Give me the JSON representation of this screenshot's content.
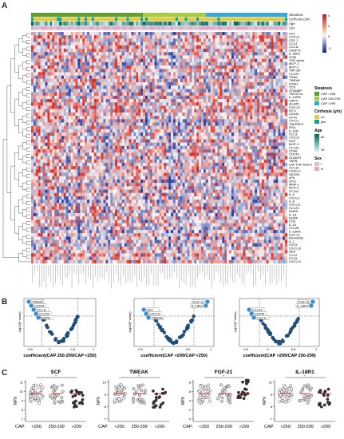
{
  "panels": {
    "a": "A",
    "b": "B",
    "c": "C"
  },
  "heatmap": {
    "annot_labels": [
      "Steatosis",
      "Cirrhosis (y/n)",
      "Age",
      "Sex"
    ],
    "genes": [
      "SCF",
      "CXCL6",
      "CSF-1",
      "CCL4",
      "CCL11",
      "CASP-8",
      "IL-18R1",
      "OSM",
      "TGF-alpha",
      "MCP-1",
      "MCP-2",
      "TNF-sfb",
      "CCL20",
      "TRAIL",
      "TWEAK",
      "AXIN1",
      "CD5",
      "STAMBP",
      "TNFSF14",
      "IL-10RB",
      "SIRT2",
      "4E-BP1",
      "FGF-23",
      "NT-3",
      "CD244",
      "LIF-R",
      "CXCL1",
      "TNFRSF9",
      "Flt3L",
      "IL-12B",
      "CCL3",
      "CXCL5",
      "HGF",
      "MCP-3",
      "CCL25",
      "CD40",
      "CDCP1",
      "SLAMF1",
      "TNFB",
      "LAP TGF-beta-1",
      "CCL19",
      "CX3CL1",
      "VEGFA",
      "uPA",
      "OPG",
      "MMP-1",
      "MCP-4",
      "ST1A1",
      "IL-6",
      "CXCL9",
      "IL-8",
      "CXCL11",
      "CCL23",
      "DNER",
      "IL-18",
      "GDNF",
      "CD6",
      "IL-10",
      "CCL28",
      "IL-15RA",
      "FGF-21",
      "EN-RAGE",
      "IL-7",
      "CST5",
      "CXCL10",
      "ADA",
      "CCL2",
      "CCL5",
      "CXCL12"
    ],
    "colorbar_ticks": [
      "4",
      "2",
      "0",
      "-2"
    ],
    "legend": {
      "steatosis": {
        "title": "Steatosis",
        "items": [
          {
            "label": "CAP <250",
            "color": "#5aa02c"
          },
          {
            "label": "CAP 250-299",
            "color": "#a4cd3a"
          },
          {
            "label": "CAP >299",
            "color": "#2fa9d8"
          }
        ]
      },
      "cirrhosis": {
        "title": "Cirrhosis (y/n)",
        "items": [
          {
            "label": "no",
            "color": "#e3c94a"
          },
          {
            "label": "yes",
            "color": "#17a098"
          }
        ]
      },
      "age": {
        "title": "Age",
        "ticks": [
          "80",
          "30"
        ]
      },
      "sex": {
        "title": "Sex",
        "items": [
          {
            "label": "f",
            "color": "#d7c0d6"
          },
          {
            "label": "m",
            "color": "#e3a7c6"
          }
        ]
      }
    },
    "colors": {
      "high": "#d73027",
      "low": "#2c3ea0",
      "mid": "#f7f7f7"
    }
  },
  "volcanoes": [
    {
      "xlabel": "coefficient(CAP 250-299/CAP <250)",
      "ylabel": "-log10(P value)",
      "labels": [
        "TWEAK",
        "CD244",
        "CCL11",
        "CCL28",
        "AXIN1"
      ],
      "xticks": [
        "-0.5",
        "0",
        "0.5",
        "1"
      ]
    },
    {
      "xlabel": "coefficient(CAP >299/CAP <250)",
      "ylabel": "-log10(P value)",
      "labels": [
        "FGF-21",
        "IL-18R1",
        "SCF",
        "CXCL5",
        "TWEAK"
      ],
      "xticks": [
        "-0.5",
        "0",
        "0.5",
        "1"
      ]
    },
    {
      "xlabel": "coefficient(CAP >299/CAP 250-299)",
      "ylabel": "-log10(P value)",
      "labels": [
        "FGF-21",
        "IL-18R1",
        "CCL23",
        "CD244",
        "CCL11"
      ],
      "xticks": [
        "-0.5",
        "0",
        "0.5",
        "1"
      ]
    }
  ],
  "dotplots": [
    {
      "title": "SCF",
      "ylabel": "NPX",
      "yticks": [
        "11",
        "10",
        "9",
        "8",
        "7"
      ],
      "sig": "*"
    },
    {
      "title": "TWEAK",
      "ylabel": "NPX",
      "yticks": [
        "10",
        "9",
        "8",
        "7"
      ],
      "sig": "*"
    },
    {
      "title": "FGF-21",
      "ylabel": "NPX",
      "yticks": [
        "8",
        "6",
        "4",
        "2",
        "0"
      ],
      "sig": "*"
    },
    {
      "title": "IL-18R1",
      "ylabel": "NPX",
      "yticks": [
        "10",
        "9",
        "8",
        "7"
      ],
      "sig": "*"
    }
  ],
  "xaxis": {
    "prefix": "CAP:",
    "groups": [
      "<250",
      "250-299",
      ">299"
    ]
  }
}
